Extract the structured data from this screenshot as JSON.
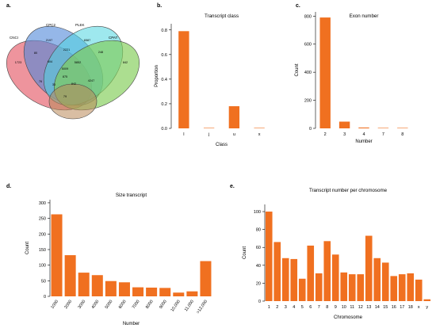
{
  "panels": {
    "a": "a.",
    "b": "b.",
    "c": "c.",
    "d": "d.",
    "e": "e."
  },
  "venn": {
    "sets": [
      {
        "name": "CNCI",
        "color": "#e8707c"
      },
      {
        "name": "CPC2",
        "color": "#4f87d9"
      },
      {
        "name": "PLEK",
        "color": "#4fd6e0"
      },
      {
        "name": "CPAT",
        "color": "#7fcc55"
      },
      {
        "name": "",
        "color": "#b98958"
      }
    ],
    "regions": [
      "1723",
      "2197",
      "6587",
      "842",
      "80",
      "2221",
      "248",
      "604",
      "5852",
      "5009",
      "76",
      "875",
      "4247",
      "33",
      "842",
      "79"
    ]
  },
  "chart_data": [
    {
      "id": "class",
      "type": "bar",
      "title": "Transcript class",
      "xlabel": "Class",
      "ylabel": "Proportion",
      "categories": [
        "I",
        "j",
        "u",
        "x"
      ],
      "values": [
        0.79,
        0.002,
        0.18,
        0.003
      ],
      "ylim": [
        0,
        0.85
      ],
      "yticks": [
        "0.0",
        "0.2",
        "0.4",
        "0.6",
        "0.8"
      ],
      "ytick_values": [
        0,
        0.2,
        0.4,
        0.6,
        0.8
      ],
      "color": "#f07020"
    },
    {
      "id": "exon",
      "type": "bar",
      "title": "Exon number",
      "xlabel": "Number",
      "ylabel": "Count",
      "categories": [
        "2",
        "3",
        "4",
        "7",
        "8"
      ],
      "values": [
        790,
        48,
        6,
        2,
        3
      ],
      "ylim": [
        0,
        830
      ],
      "yticks": [
        "0",
        "200",
        "400",
        "600",
        "800"
      ],
      "ytick_values": [
        0,
        200,
        400,
        600,
        800
      ],
      "color": "#f07020"
    },
    {
      "id": "size",
      "type": "bar",
      "title": "Size transcript",
      "xlabel": "Number",
      "ylabel": "Count",
      "categories": [
        "1000",
        "2000",
        "3000",
        "4000",
        "5000",
        "6000",
        "7000",
        "8000",
        "9000",
        "10,000",
        "11,000",
        ">12,000"
      ],
      "values": [
        263,
        132,
        76,
        68,
        49,
        45,
        29,
        28,
        27,
        12,
        16,
        113
      ],
      "ylim": [
        0,
        310
      ],
      "yticks": [
        "0",
        "50",
        "100",
        "150",
        "200",
        "250",
        "300"
      ],
      "ytick_values": [
        0,
        50,
        100,
        150,
        200,
        250,
        300
      ],
      "color": "#f07020"
    },
    {
      "id": "chrom",
      "type": "bar",
      "title": "Transcript number per chromosome",
      "xlabel": "Chromosome",
      "ylabel": "Count",
      "categories": [
        "1",
        "2",
        "3",
        "4",
        "5",
        "6",
        "7",
        "8",
        "9",
        "10",
        "11",
        "12",
        "13",
        "14",
        "15",
        "16",
        "17",
        "18",
        "x",
        "y"
      ],
      "values": [
        100,
        66,
        48,
        47,
        25,
        62,
        31,
        67,
        52,
        32,
        30,
        30,
        73,
        48,
        43,
        28,
        30,
        31,
        24,
        2
      ],
      "ylim": [
        0,
        108
      ],
      "yticks": [
        "0",
        "20",
        "40",
        "60",
        "80",
        "100"
      ],
      "ytick_values": [
        0,
        20,
        40,
        60,
        80,
        100
      ],
      "color": "#f07020"
    }
  ]
}
